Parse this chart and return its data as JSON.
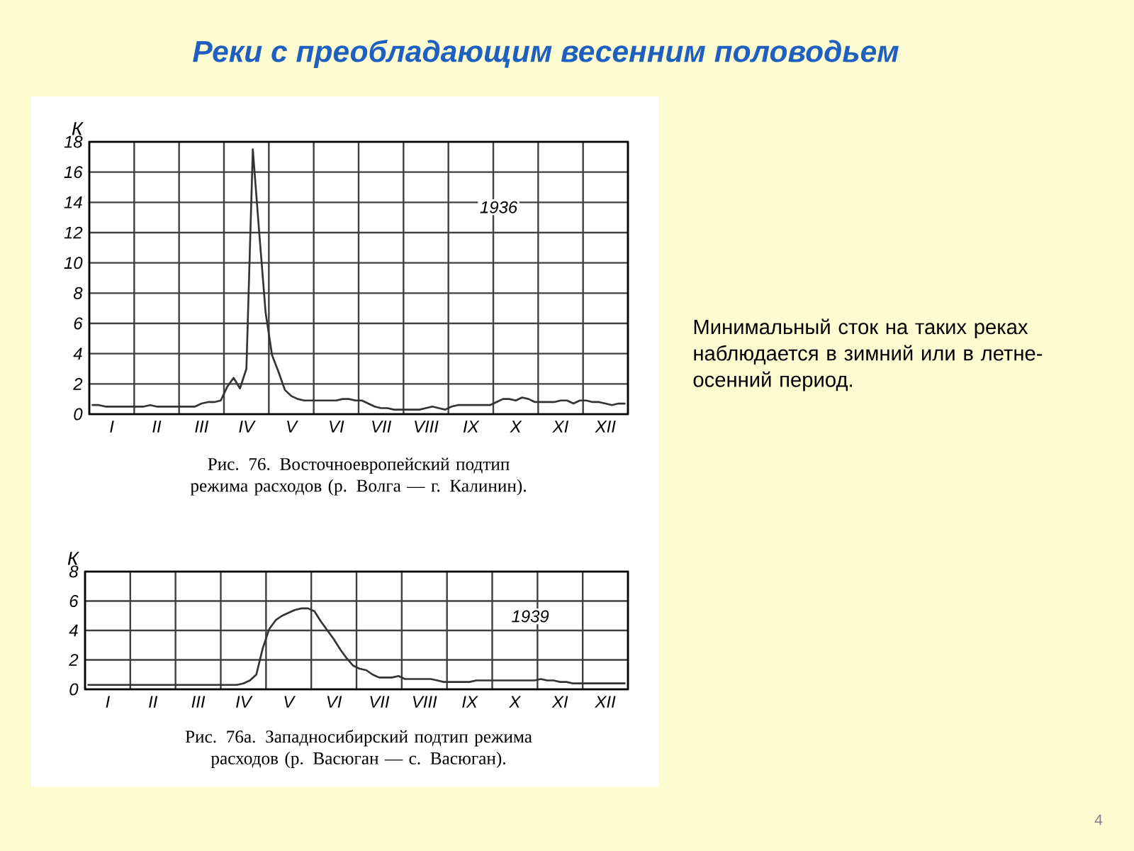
{
  "chart_data": [
    {
      "type": "other",
      "title": "Реки с преобладающим весенним половодьем",
      "annotations": [
        "Минимальный сток на таких реках наблюдается  в зимний или в летне-осенний период.",
        "4"
      ]
    },
    {
      "type": "line",
      "ylabel": "К",
      "ylim": [
        0,
        18
      ],
      "grid": true,
      "color": "#333333",
      "categories": [
        null,
        null,
        null,
        "I",
        null,
        null,
        null,
        null,
        null,
        null,
        "II",
        null,
        null,
        null,
        null,
        null,
        null,
        "III",
        null,
        null,
        null,
        null,
        null,
        null,
        "IV",
        null,
        null,
        null,
        null,
        null,
        null,
        "V",
        null,
        null,
        null,
        null,
        null,
        null,
        "VI",
        null,
        null,
        null,
        null,
        null,
        null,
        "VII",
        null,
        null,
        null,
        null,
        null,
        null,
        "VIII",
        null,
        null,
        null,
        null,
        null,
        null,
        "IX",
        null,
        null,
        null,
        null,
        null,
        null,
        "X",
        null,
        null,
        null,
        null,
        null,
        null,
        "XI",
        null,
        null,
        null,
        null,
        null,
        null,
        "XII",
        null,
        null,
        null
      ],
      "yticks": [
        0,
        2,
        4,
        6,
        8,
        10,
        12,
        14,
        16,
        18
      ],
      "values": [
        0.6,
        0.6,
        0.5,
        0.5,
        0.5,
        0.5,
        0.5,
        0.5,
        0.5,
        0.6,
        0.5,
        0.5,
        0.5,
        0.5,
        0.5,
        0.5,
        0.5,
        0.7,
        0.8,
        0.8,
        0.9,
        1.8,
        2.4,
        1.7,
        3.0,
        17.5,
        12.0,
        6.7,
        3.9,
        2.8,
        1.6,
        1.2,
        1.0,
        0.9,
        0.9,
        0.9,
        0.9,
        0.9,
        0.9,
        1.0,
        1.0,
        0.9,
        0.9,
        0.7,
        0.5,
        0.4,
        0.4,
        0.3,
        0.3,
        0.3,
        0.3,
        0.3,
        0.4,
        0.5,
        0.4,
        0.3,
        0.5,
        0.6,
        0.6,
        0.6,
        0.6,
        0.6,
        0.6,
        0.8,
        1.0,
        1.0,
        0.9,
        1.1,
        1.0,
        0.8,
        0.8,
        0.8,
        0.8,
        0.9,
        0.9,
        0.7,
        0.9,
        0.9,
        0.8,
        0.8,
        0.7,
        0.6,
        0.7,
        0.7
      ],
      "annotations": [
        "1936",
        "Рис. 76. Восточноевропейский подтип режима расходов (р. Волга — г. Калинин)."
      ]
    },
    {
      "type": "line",
      "ylabel": "К",
      "ylim": [
        0,
        8
      ],
      "grid": true,
      "color": "#333333",
      "categories": [
        null,
        null,
        null,
        "I",
        null,
        null,
        null,
        null,
        null,
        null,
        "II",
        null,
        null,
        null,
        null,
        null,
        null,
        "III",
        null,
        null,
        null,
        null,
        null,
        null,
        "IV",
        null,
        null,
        null,
        null,
        null,
        null,
        "V",
        null,
        null,
        null,
        null,
        null,
        null,
        "VI",
        null,
        null,
        null,
        null,
        null,
        null,
        "VII",
        null,
        null,
        null,
        null,
        null,
        null,
        "VIII",
        null,
        null,
        null,
        null,
        null,
        null,
        "IX",
        null,
        null,
        null,
        null,
        null,
        null,
        "X",
        null,
        null,
        null,
        null,
        null,
        null,
        "XI",
        null,
        null,
        null,
        null,
        null,
        null,
        "XII",
        null,
        null,
        null
      ],
      "yticks": [
        0,
        2,
        4,
        6,
        8
      ],
      "values": [
        0.3,
        0.3,
        0.3,
        0.3,
        0.3,
        0.3,
        0.3,
        0.3,
        0.3,
        0.3,
        0.3,
        0.3,
        0.3,
        0.3,
        0.3,
        0.3,
        0.3,
        0.3,
        0.3,
        0.3,
        0.3,
        0.3,
        0.3,
        0.3,
        0.4,
        0.6,
        1.0,
        2.8,
        4.1,
        4.7,
        5.0,
        5.2,
        5.4,
        5.5,
        5.5,
        5.3,
        4.6,
        4.0,
        3.4,
        2.7,
        2.1,
        1.6,
        1.4,
        1.3,
        1.0,
        0.8,
        0.8,
        0.8,
        0.9,
        0.7,
        0.7,
        0.7,
        0.7,
        0.7,
        0.6,
        0.5,
        0.5,
        0.5,
        0.5,
        0.5,
        0.6,
        0.6,
        0.6,
        0.6,
        0.6,
        0.6,
        0.6,
        0.6,
        0.6,
        0.6,
        0.7,
        0.6,
        0.6,
        0.5,
        0.5,
        0.4,
        0.4,
        0.4,
        0.4,
        0.4,
        0.4,
        0.4,
        0.4,
        0.4
      ],
      "annotations": [
        "1939",
        "Рис. 76а. Западносибирский подтип режима расходов (р. Васюган — с. Васюган)."
      ]
    }
  ]
}
